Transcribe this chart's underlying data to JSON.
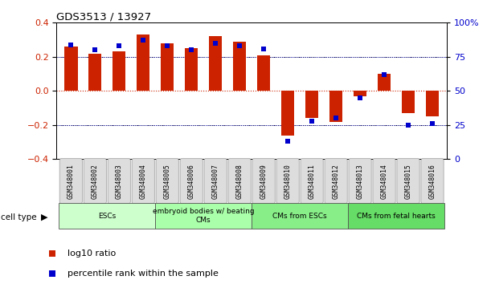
{
  "title": "GDS3513 / 13927",
  "samples": [
    "GSM348001",
    "GSM348002",
    "GSM348003",
    "GSM348004",
    "GSM348005",
    "GSM348006",
    "GSM348007",
    "GSM348008",
    "GSM348009",
    "GSM348010",
    "GSM348011",
    "GSM348012",
    "GSM348013",
    "GSM348014",
    "GSM348015",
    "GSM348016"
  ],
  "log10_ratio": [
    0.26,
    0.22,
    0.23,
    0.33,
    0.28,
    0.25,
    0.32,
    0.29,
    0.21,
    -0.26,
    -0.16,
    -0.18,
    -0.03,
    0.1,
    -0.13,
    -0.15
  ],
  "percentile_rank": [
    84,
    80,
    83,
    87,
    83,
    80,
    85,
    83,
    81,
    13,
    28,
    30,
    45,
    62,
    25,
    26
  ],
  "bar_color": "#cc2200",
  "dot_color": "#0000cc",
  "ylim_left": [
    -0.4,
    0.4
  ],
  "ylim_right": [
    0,
    100
  ],
  "yticks_left": [
    -0.4,
    -0.2,
    0.0,
    0.2,
    0.4
  ],
  "yticks_right": [
    0,
    25,
    50,
    75,
    100
  ],
  "ytick_labels_right": [
    "0",
    "25",
    "50",
    "75",
    "100%"
  ],
  "cell_types": [
    {
      "label": "ESCs",
      "start": 0,
      "end": 3,
      "color": "#ccffcc"
    },
    {
      "label": "embryoid bodies w/ beating\nCMs",
      "start": 4,
      "end": 7,
      "color": "#aaffaa"
    },
    {
      "label": "CMs from ESCs",
      "start": 8,
      "end": 11,
      "color": "#88ee88"
    },
    {
      "label": "CMs from fetal hearts",
      "start": 12,
      "end": 15,
      "color": "#66dd66"
    }
  ],
  "legend_red_label": "log10 ratio",
  "legend_blue_label": "percentile rank within the sample",
  "cell_type_label": "cell type",
  "background_color": "#ffffff"
}
